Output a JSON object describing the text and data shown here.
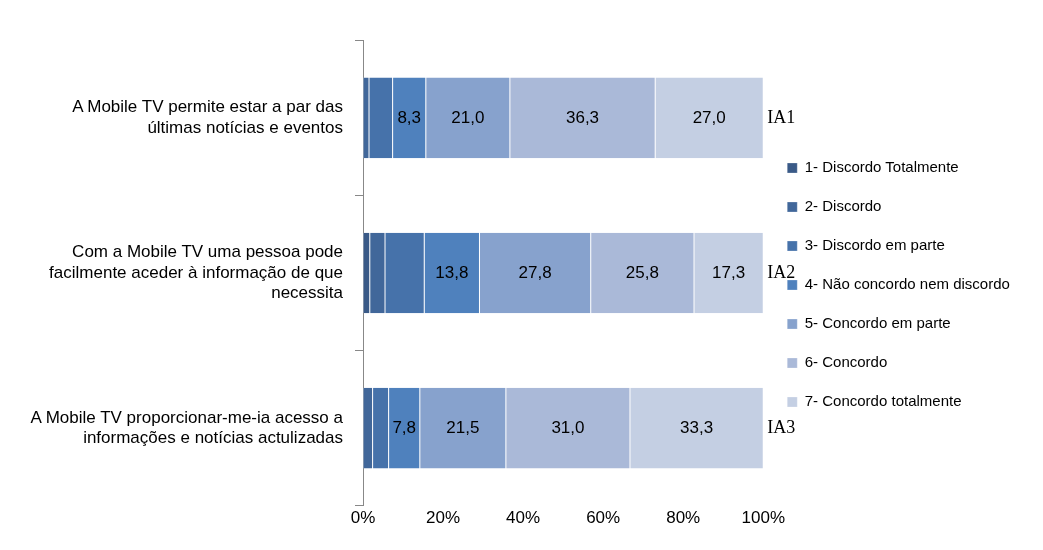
{
  "chart_data": {
    "type": "bar",
    "orientation": "horizontal",
    "stacked": true,
    "categories": [
      "A Mobile TV permite estar a par das últimas notícias e eventos",
      "Com a Mobile TV uma pessoa pode facilmente aceder à informação de que necessita",
      "A Mobile TV proporcionar-me-ia acesso a informações e notícias actulizadas"
    ],
    "series": [
      {
        "name": "1- Discordo Totalmente",
        "color": "#3a5a87",
        "values": [
          0,
          1.7,
          0
        ],
        "value_labels": [
          null,
          null,
          null
        ]
      },
      {
        "name": "2- Discordo",
        "color": "#41679a",
        "values": [
          1.5,
          3.8,
          2.4
        ],
        "value_labels": [
          null,
          null,
          null
        ]
      },
      {
        "name": "3- Discordo em parte",
        "color": "#4672aa",
        "values": [
          5.9,
          9.8,
          4.0
        ],
        "value_labels": [
          null,
          null,
          null
        ]
      },
      {
        "name": "4- Não concordo nem discordo",
        "color": "#4f81bd",
        "values": [
          8.3,
          13.8,
          7.8
        ],
        "value_labels": [
          "8,3",
          "13,8",
          "7,8"
        ]
      },
      {
        "name": "5- Concordo em parte",
        "color": "#87a2cd",
        "values": [
          21.0,
          27.8,
          21.5
        ],
        "value_labels": [
          "21,0",
          "27,8",
          "21,5"
        ]
      },
      {
        "name": "6- Concordo",
        "color": "#aab9d8",
        "values": [
          36.3,
          25.8,
          31.0
        ],
        "value_labels": [
          "36,3",
          "25,8",
          "31,0"
        ]
      },
      {
        "name": "7- Concordo totalmente",
        "color": "#c4cfe3",
        "values": [
          27.0,
          17.3,
          33.3
        ],
        "value_labels": [
          "27,0",
          "17,3",
          "33,3"
        ]
      }
    ],
    "xlim": [
      0,
      100
    ],
    "xticks": [
      {
        "value": 0,
        "label": "0%"
      },
      {
        "value": 20,
        "label": "20%"
      },
      {
        "value": 40,
        "label": "40%"
      },
      {
        "value": 60,
        "label": "60%"
      },
      {
        "value": 80,
        "label": "80%"
      },
      {
        "value": 100,
        "label": "100%"
      }
    ],
    "annotations": [
      "IA1",
      "IA2",
      "IA3"
    ],
    "grid": false,
    "legend": "right"
  }
}
